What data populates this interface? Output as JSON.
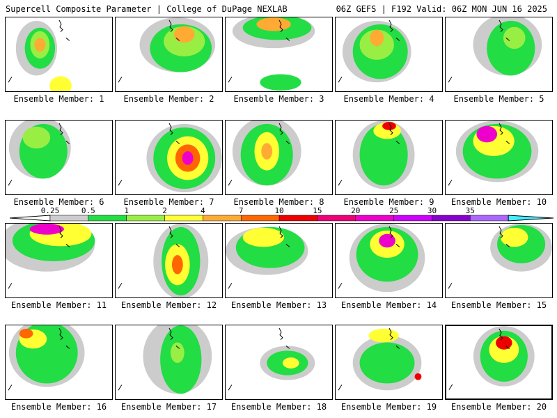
{
  "header": {
    "left_title": "Supercell Composite Parameter | College of DuPage NEXLAB",
    "right_title": "06Z GEFS | F192 Valid: 06Z MON JUN 16 2025"
  },
  "colorbar": {
    "labels": [
      "0.25",
      "0.5",
      "1",
      "2",
      "4",
      "7",
      "10",
      "15",
      "20",
      "25",
      "30",
      "35"
    ],
    "colors": [
      "#cccccc",
      "#22dd44",
      "#99ee44",
      "#ffff33",
      "#ffaa33",
      "#ff6600",
      "#ee0000",
      "#ee0077",
      "#ee00cc",
      "#cc00ff",
      "#8800cc",
      "#aa66ff",
      "#44eeff"
    ]
  },
  "panels": [
    {
      "label": "Ensemble Member: 1",
      "highlighted": false
    },
    {
      "label": "Ensemble Member: 2",
      "highlighted": false
    },
    {
      "label": "Ensemble Member: 3",
      "highlighted": false
    },
    {
      "label": "Ensemble Member: 4",
      "highlighted": false
    },
    {
      "label": "Ensemble Member: 5",
      "highlighted": false
    },
    {
      "label": "Ensemble Member: 6",
      "highlighted": false
    },
    {
      "label": "Ensemble Member: 7",
      "highlighted": false
    },
    {
      "label": "Ensemble Member: 8",
      "highlighted": false
    },
    {
      "label": "Ensemble Member: 9",
      "highlighted": false
    },
    {
      "label": "Ensemble Member: 10",
      "highlighted": false
    },
    {
      "label": "Ensemble Member: 11",
      "highlighted": false
    },
    {
      "label": "Ensemble Member: 12",
      "highlighted": false
    },
    {
      "label": "Ensemble Member: 13",
      "highlighted": false
    },
    {
      "label": "Ensemble Member: 14",
      "highlighted": false
    },
    {
      "label": "Ensemble Member: 15",
      "highlighted": false
    },
    {
      "label": "Ensemble Member: 16",
      "highlighted": false
    },
    {
      "label": "Ensemble Member: 17",
      "highlighted": false
    },
    {
      "label": "Ensemble Member: 18",
      "highlighted": false
    },
    {
      "label": "Ensemble Member: 19",
      "highlighted": false
    },
    {
      "label": "Ensemble Member: 20",
      "highlighted": true
    }
  ]
}
